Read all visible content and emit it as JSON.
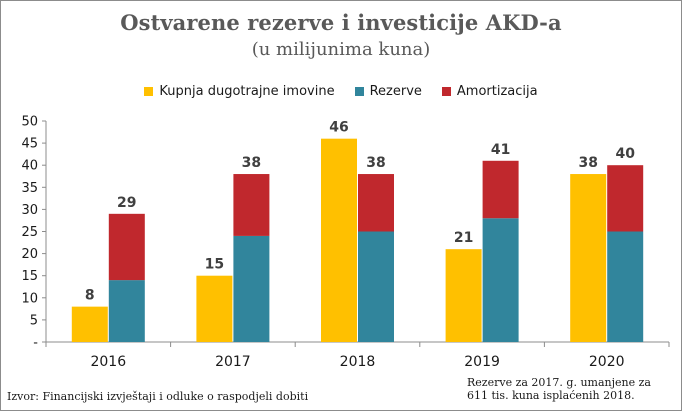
{
  "chart_data": {
    "type": "bar",
    "title": "Ostvarene rezerve i investicije AKD-a",
    "subtitle": "(u milijunima kuna)",
    "categories": [
      "2016",
      "2017",
      "2018",
      "2019",
      "2020"
    ],
    "series": [
      {
        "name": "Kupnja dugotrajne imovine",
        "values": [
          8,
          15,
          46,
          21,
          38
        ],
        "color": "#ffc000"
      },
      {
        "name": "Rezerve",
        "values": [
          14,
          24,
          25,
          28,
          25
        ],
        "color": "#31859c"
      },
      {
        "name": "Amortizacija",
        "values": [
          15,
          14,
          13,
          13,
          15
        ],
        "color": "#c0282d"
      }
    ],
    "stack_totals": [
      29,
      38,
      38,
      41,
      40
    ],
    "stacked_series": [
      "Rezerve",
      "Amortizacija"
    ],
    "ylim": [
      0,
      50
    ],
    "yticks": [
      "-",
      "5",
      "10",
      "15",
      "20",
      "25",
      "30",
      "35",
      "40",
      "45",
      "50"
    ],
    "xlabel": "",
    "ylabel": "",
    "legend_position": "top-center",
    "grid": false
  },
  "footer": {
    "source": "Izvor: Financijski izvještaji i odluke o raspodjeli dobiti",
    "note_line1": "Rezerve za 2017. g. umanjene za",
    "note_line2": "611 tis. kuna isplaćenih 2018."
  }
}
